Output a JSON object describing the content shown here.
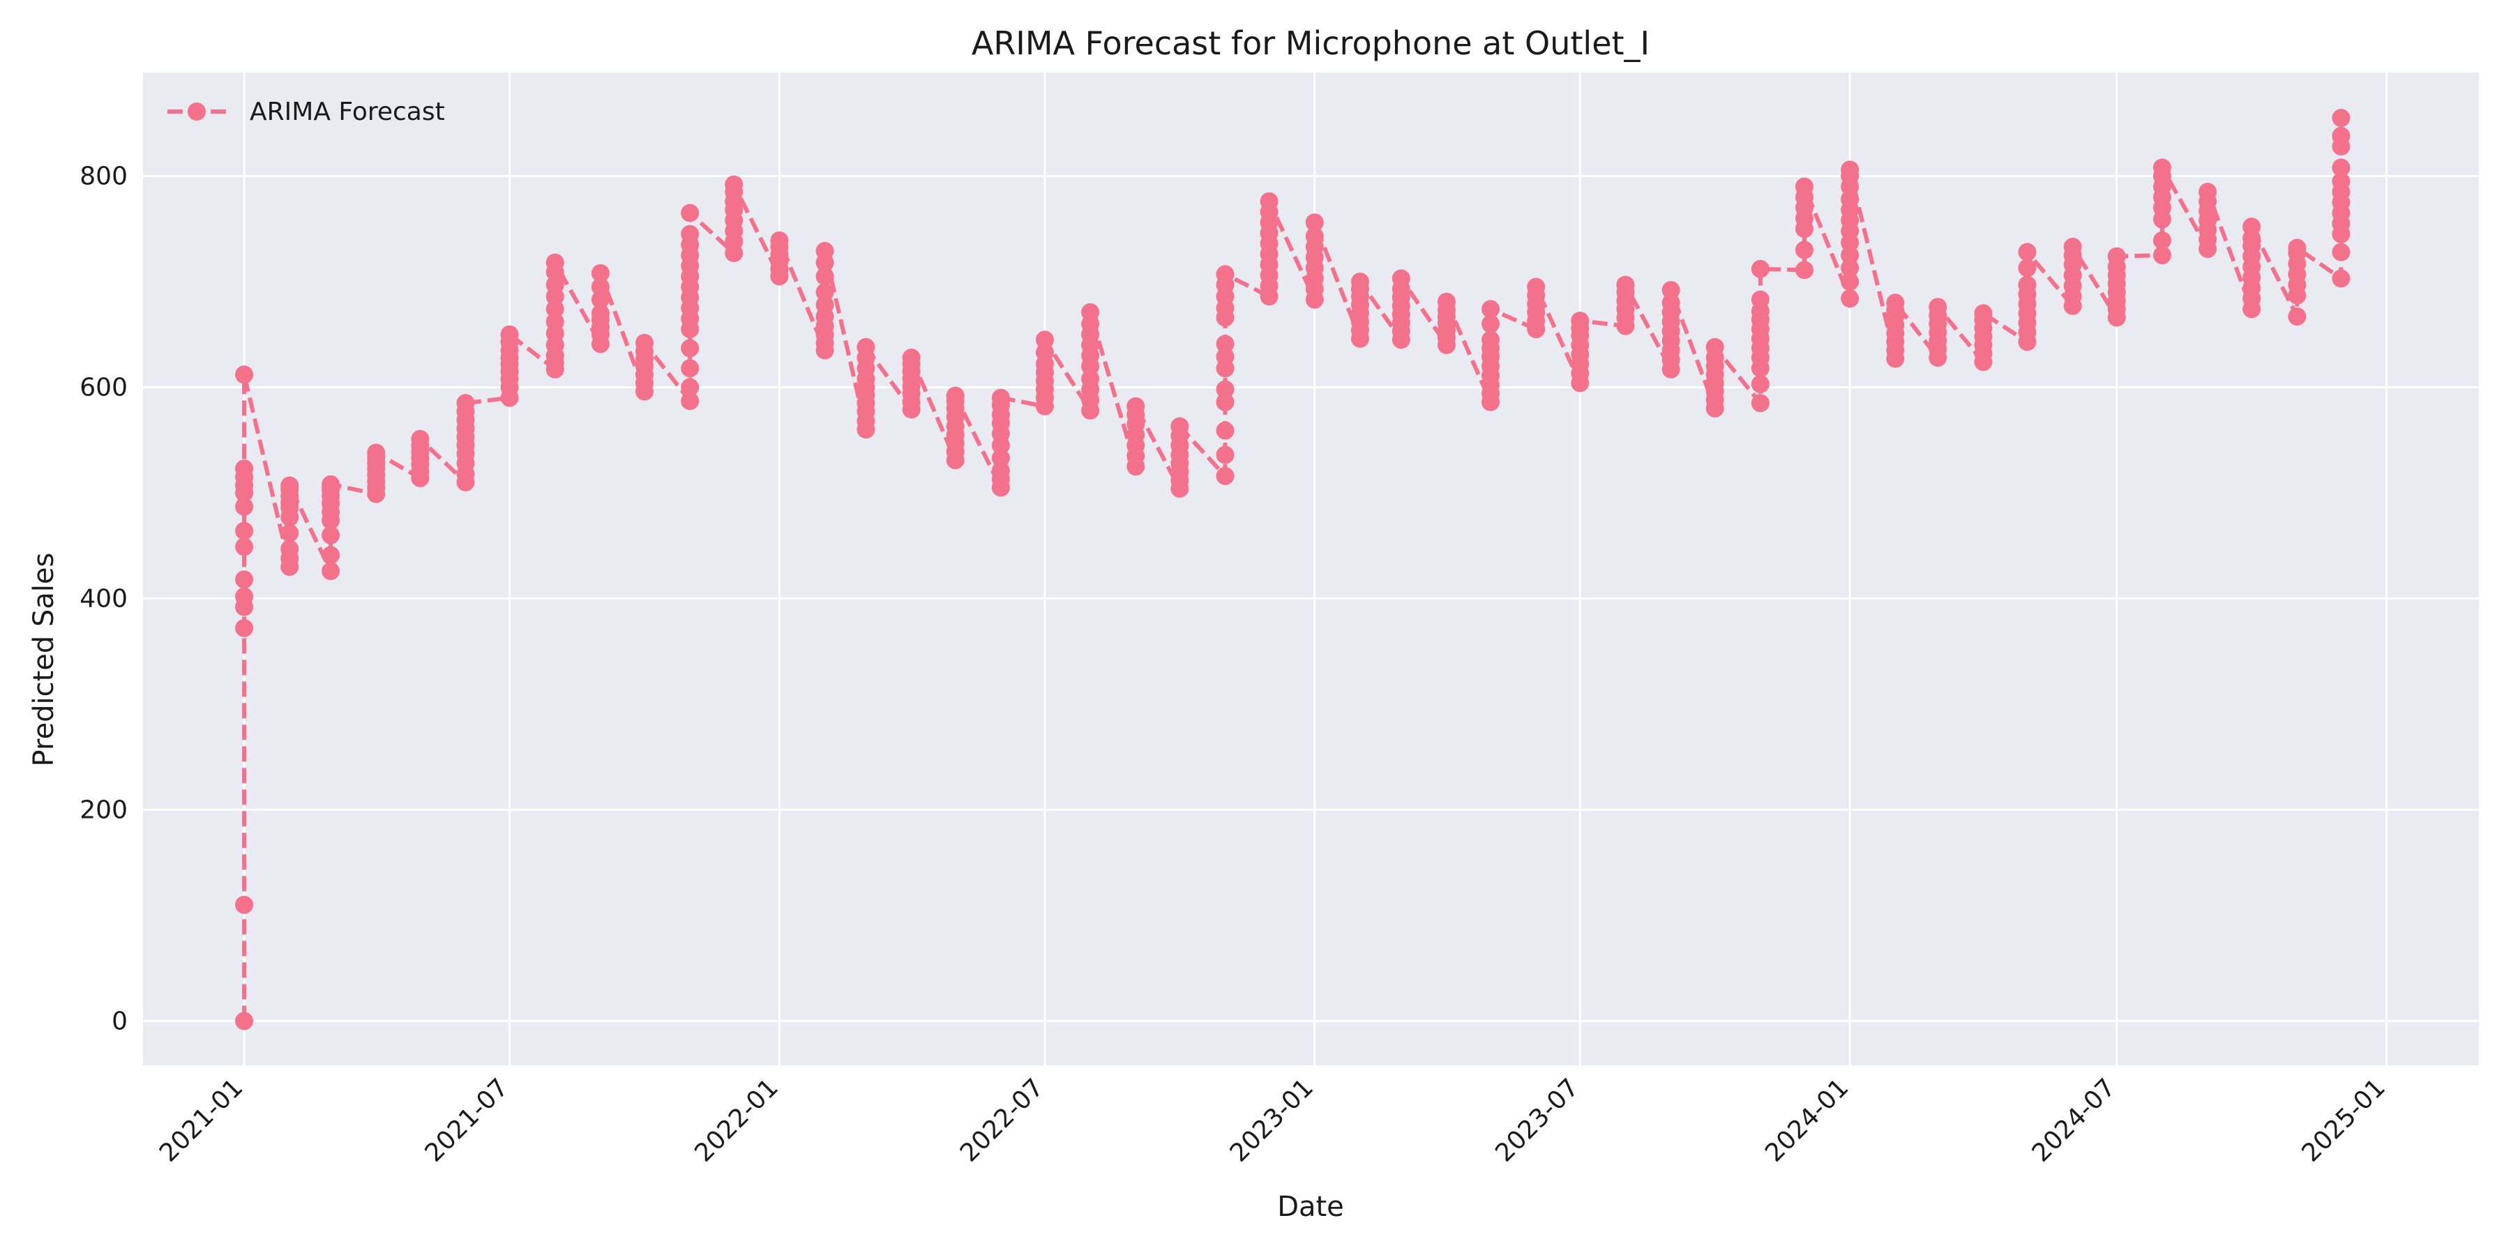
{
  "chart_data": {
    "type": "line",
    "title": "ARIMA Forecast for Microphone at Outlet_I",
    "xlabel": "Date",
    "ylabel": "Predicted Sales",
    "xlim": [
      "2020-10-24",
      "2025-03-05"
    ],
    "ylim": [
      -42,
      898
    ],
    "x_ticks": [
      "2021-01",
      "2021-07",
      "2022-01",
      "2022-07",
      "2023-01",
      "2023-07",
      "2024-01",
      "2024-07",
      "2025-01"
    ],
    "y_ticks": [
      0,
      200,
      400,
      600,
      800
    ],
    "grid": true,
    "legend": {
      "position": "top-left",
      "entries": [
        "ARIMA Forecast"
      ]
    },
    "colors": {
      "series": "#f4718c",
      "plot_bg": "#eaeaf2",
      "grid": "#ffffff"
    },
    "series": [
      {
        "name": "ARIMA Forecast",
        "marker": "circle",
        "linestyle": "dashed",
        "points": [
          [
            "2021-01-01",
            [
              0,
              110,
              372,
              392,
              402,
              418,
              449,
              464,
              487,
              500,
              507,
              515,
              523,
              612
            ]
          ],
          [
            "2021-02-01",
            [
              430,
              438,
              447,
              462,
              477,
              486,
              491,
              497,
              503,
              507
            ]
          ],
          [
            "2021-03-01",
            [
              426,
              441,
              460,
              474,
              482,
              490,
              497,
              503,
              508
            ]
          ],
          [
            "2021-04-01",
            [
              499,
              505,
              511,
              517,
              523,
              528,
              533,
              538
            ]
          ],
          [
            "2021-05-01",
            [
              514,
              520,
              527,
              533,
              539,
              545,
              551
            ]
          ],
          [
            "2021-06-01",
            [
              510,
              518,
              528,
              537,
              545,
              553,
              561,
              569,
              577,
              585
            ]
          ],
          [
            "2021-07-01",
            [
              590,
              600,
              608,
              615,
              622,
              628,
              635,
              643,
              650
            ]
          ],
          [
            "2021-08-01",
            [
              617,
              623,
              630,
              640,
              651,
              662,
              674,
              686,
              697,
              709,
              718
            ]
          ],
          [
            "2021-09-01",
            [
              641,
              650,
              657,
              664,
              670,
              683,
              695,
              708
            ]
          ],
          [
            "2021-10-01",
            [
              596,
              604,
              612,
              620,
              627,
              634,
              642
            ]
          ],
          [
            "2021-11-01",
            [
              587,
              600,
              618,
              637,
              655,
              665,
              675,
              685,
              695,
              705,
              715,
              725,
              735,
              745,
              765
            ]
          ],
          [
            "2021-12-01",
            [
              727,
              738,
              748,
              758,
              768,
              776,
              785,
              792
            ]
          ],
          [
            "2022-01-01",
            [
              705,
              712,
              719,
              726,
              733,
              739
            ]
          ],
          [
            "2022-02-01",
            [
              635,
              642,
              650,
              658,
              667,
              678,
              690,
              705,
              718,
              729
            ]
          ],
          [
            "2022-03-01",
            [
              560,
              568,
              577,
              585,
              593,
              600,
              608,
              618,
              628,
              638
            ]
          ],
          [
            "2022-04-01",
            [
              579,
              586,
              594,
              601,
              608,
              615,
              622,
              628
            ]
          ],
          [
            "2022-05-01",
            [
              531,
              539,
              547,
              555,
              563,
              572,
              580,
              587,
              592
            ]
          ],
          [
            "2022-06-01",
            [
              505,
              513,
              521,
              533,
              545,
              556,
              566,
              574,
              583,
              590
            ]
          ],
          [
            "2022-07-01",
            [
              582,
              590,
              598,
              606,
              614,
              622,
              633,
              645
            ]
          ],
          [
            "2022-08-01",
            [
              578,
              588,
              598,
              608,
              620,
              630,
              640,
              650,
              660,
              671
            ]
          ],
          [
            "2022-09-01",
            [
              525,
              535,
              545,
              555,
              565,
              574,
              582
            ]
          ],
          [
            "2022-10-01",
            [
              504,
              512,
              520,
              528,
              536,
              545,
              554,
              563
            ]
          ],
          [
            "2022-11-01",
            [
              516,
              536,
              559,
              586,
              598,
              618,
              629,
              641,
              666,
              675,
              686,
              697,
              707
            ]
          ],
          [
            "2022-12-01",
            [
              686,
              696,
              706,
              716,
              726,
              736,
              746,
              756,
              766,
              776
            ]
          ],
          [
            "2023-01-01",
            [
              683,
              693,
              703,
              713,
              723,
              733,
              743,
              756
            ]
          ],
          [
            "2023-02-01",
            [
              646,
              654,
              662,
              670,
              678,
              686,
              693,
              700
            ]
          ],
          [
            "2023-03-01",
            [
              645,
              653,
              661,
              669,
              677,
              685,
              693,
              703
            ]
          ],
          [
            "2023-04-01",
            [
              640,
              647,
              654,
              661,
              667,
              673,
              681
            ]
          ],
          [
            "2023-05-01",
            [
              586,
              594,
              602,
              611,
              620,
              629,
              637,
              645,
              660,
              674
            ]
          ],
          [
            "2023-06-01",
            [
              655,
              663,
              671,
              679,
              687,
              695
            ]
          ],
          [
            "2023-07-01",
            [
              604,
              613,
              622,
              631,
              640,
              649,
              656,
              663
            ]
          ],
          [
            "2023-08-01",
            [
              658,
              666,
              674,
              682,
              690,
              697
            ]
          ],
          [
            "2023-09-01",
            [
              617,
              626,
              635,
              644,
              653,
              662,
              671,
              680,
              692
            ]
          ],
          [
            "2023-10-01",
            [
              580,
              588,
              596,
              604,
              612,
              620,
              628,
              638
            ]
          ],
          [
            "2023-11-01",
            [
              585,
              603,
              618,
              628,
              637,
              646,
              655,
              664,
              672,
              683,
              712
            ]
          ],
          [
            "2023-12-01",
            [
              711,
              730,
              750,
              760,
              770,
              780,
              790
            ]
          ],
          [
            "2024-01-01",
            [
              684,
              700,
              713,
              725,
              737,
              748,
              758,
              768,
              778,
              790,
              800,
              806
            ]
          ],
          [
            "2024-02-01",
            [
              627,
              635,
              643,
              651,
              659,
              667,
              673,
              680
            ]
          ],
          [
            "2024-03-01",
            [
              628,
              636,
              644,
              652,
              660,
              668,
              676
            ]
          ],
          [
            "2024-04-01",
            [
              624,
              632,
              640,
              648,
              656,
              664,
              670
            ]
          ],
          [
            "2024-05-01",
            [
              643,
              652,
              661,
              670,
              679,
              688,
              697,
              713,
              728
            ]
          ],
          [
            "2024-06-01",
            [
              677,
              686,
              696,
              706,
              716,
              725,
              733
            ]
          ],
          [
            "2024-07-01",
            [
              666,
              674,
              682,
              690,
              698,
              706,
              714,
              724
            ]
          ],
          [
            "2024-08-01",
            [
              725,
              739,
              759,
              770,
              780,
              790,
              800,
              808
            ]
          ],
          [
            "2024-09-01",
            [
              731,
              740,
              749,
              758,
              767,
              776,
              785
            ]
          ],
          [
            "2024-10-01",
            [
              674,
              684,
              694,
              704,
              714,
              724,
              734,
              741,
              752
            ]
          ],
          [
            "2024-11-01",
            [
              667,
              687,
              697,
              707,
              717,
              727,
              732
            ]
          ],
          [
            "2024-12-01",
            [
              703,
              728,
              745,
              755,
              765,
              775,
              785,
              795,
              808,
              828,
              838,
              855
            ]
          ]
        ]
      }
    ]
  }
}
